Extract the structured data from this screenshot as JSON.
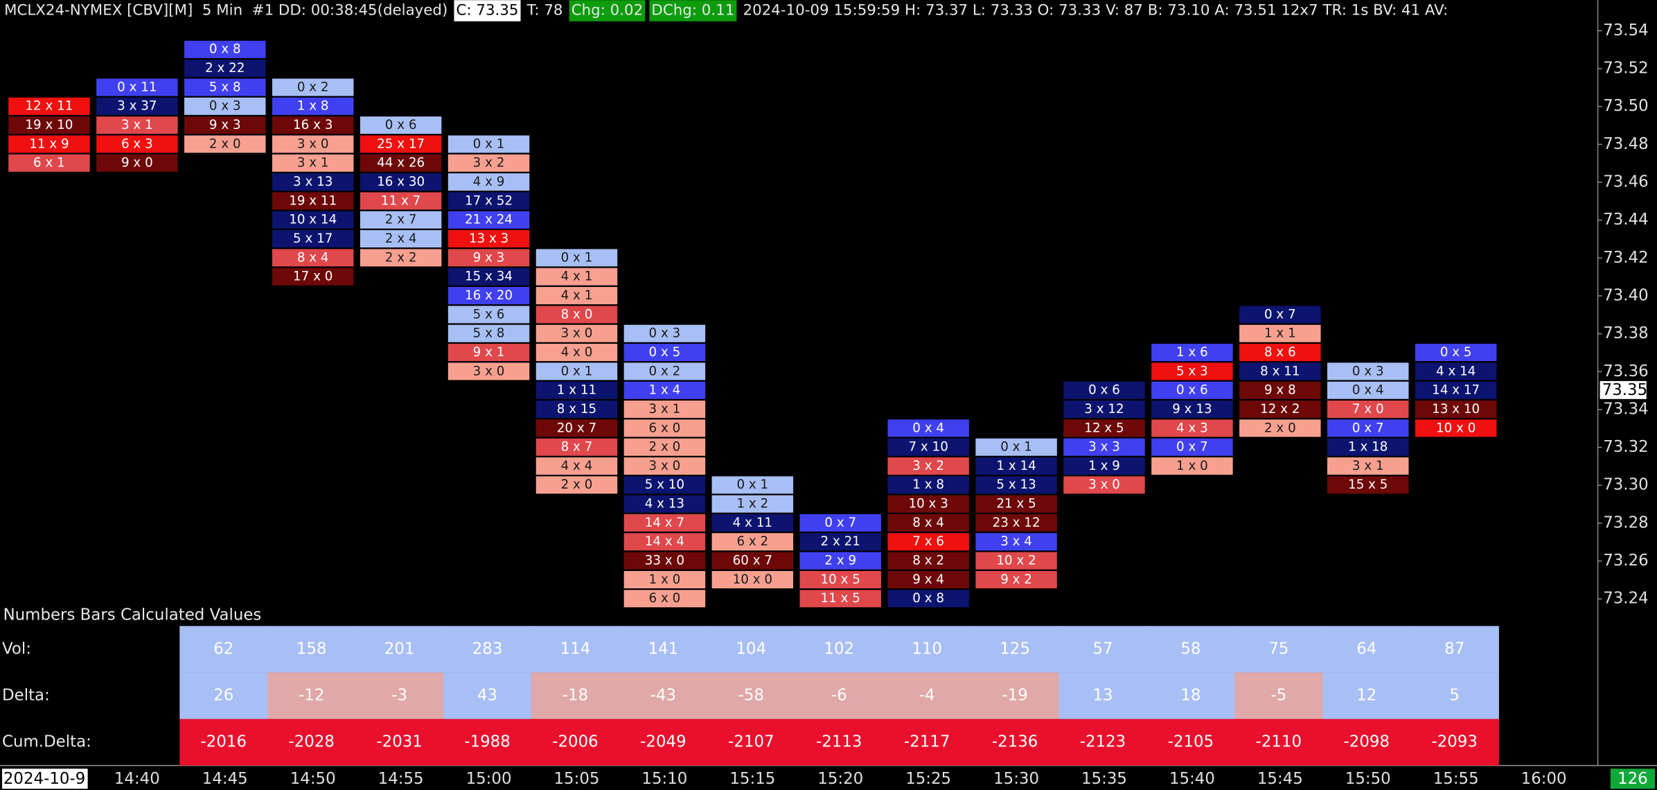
{
  "header": [
    {
      "text": "MCLX24-NYMEX [CBV][M]  5 Min  #1 DD: 00:38:45(delayed)"
    },
    {
      "text": "C: 73.35",
      "bg": "#ffffff",
      "fg": "#000000"
    },
    {
      "text": "T: 78"
    },
    {
      "text": "Chg: 0.02",
      "bg": "#0c9c0c"
    },
    {
      "text": "DChg: 0.11",
      "bg": "#0c9c0c"
    },
    {
      "text": "2024-10-09 15:59:59 H: 73.37 L: 73.33 O: 73.33 V: 87 B: 73.10 A: 73.51 12x7 TR: 1s BV: 41 AV:"
    }
  ],
  "price_axis": {
    "ylim": [
      73.152,
      73.545
    ],
    "ticks": [
      73.24,
      73.26,
      73.28,
      {
        "value": 73.3,
        "label": "73.30"
      },
      73.32,
      73.34,
      73.36,
      73.38,
      {
        "value": 73.4,
        "label": "73.40"
      },
      73.42,
      73.44,
      73.46,
      73.48,
      {
        "value": 73.5,
        "label": "73.50"
      },
      73.52,
      73.54
    ],
    "current_price": 73.35
  },
  "bars": [
    {
      "top": 73.5,
      "cells": [
        [
          "12 x 11",
          "#f01010"
        ],
        [
          "19 x 10",
          "#6e0808"
        ],
        [
          "11 x 9",
          "#f01010"
        ],
        [
          "6 x 1",
          "#e0484c"
        ]
      ]
    },
    {
      "top": 73.51,
      "cells": [
        [
          "0 x 11",
          "#4040f0"
        ],
        [
          "3 x 37",
          "#0c1470"
        ],
        [
          "3 x 1",
          "#e0484c"
        ],
        [
          "6 x 3",
          "#f01010"
        ],
        [
          "9 x 0",
          "#6e0808"
        ]
      ]
    },
    {
      "top": 73.53,
      "cells": [
        [
          "0 x 8",
          "#4040f0"
        ],
        [
          "2 x 22",
          "#0c1470"
        ],
        [
          "5 x 8",
          "#4040f0"
        ],
        [
          "0 x 3",
          "#a8bff5"
        ],
        [
          "9 x 3",
          "#6e0808"
        ],
        [
          "2 x 0",
          "#f8a090"
        ]
      ]
    },
    {
      "top": 73.51,
      "cells": [
        [
          "0 x 2",
          "#a8bff5"
        ],
        [
          "1 x 8",
          "#4040f0"
        ],
        [
          "16 x 3",
          "#6e0808"
        ],
        [
          "3 x 0",
          "#f8a090"
        ],
        [
          "3 x 1",
          "#f8a090"
        ],
        [
          "3 x 13",
          "#0c1470"
        ],
        [
          "19 x 11",
          "#6e0808"
        ],
        [
          "10 x 14",
          "#0c1470"
        ],
        [
          "5 x 17",
          "#0c1470"
        ],
        [
          "8 x 4",
          "#e0484c"
        ],
        [
          "17 x 0",
          "#6e0808"
        ]
      ]
    },
    {
      "top": 73.49,
      "cells": [
        [
          "0 x 6",
          "#a8bff5"
        ],
        [
          "25 x 17",
          "#f01010"
        ],
        [
          "44 x 26",
          "#6e0808"
        ],
        [
          "16 x 30",
          "#0c1470"
        ],
        [
          "11 x 7",
          "#e0484c"
        ],
        [
          "2 x 7",
          "#a8bff5"
        ],
        [
          "2 x 4",
          "#a8bff5"
        ],
        [
          "2 x 2",
          "#f8a090"
        ]
      ]
    },
    {
      "top": 73.48,
      "cells": [
        [
          "0 x 1",
          "#a8bff5"
        ],
        [
          "3 x 2",
          "#f8a090"
        ],
        [
          "4 x 9",
          "#a8bff5"
        ],
        [
          "17 x 52",
          "#0c1470"
        ],
        [
          "21 x 24",
          "#4040f0"
        ],
        [
          "13 x 3",
          "#f01010"
        ],
        [
          "9 x 3",
          "#e0484c"
        ],
        [
          "15 x 34",
          "#0c1470"
        ],
        [
          "16 x 20",
          "#4040f0"
        ],
        [
          "5 x 6",
          "#a8bff5"
        ],
        [
          "5 x 8",
          "#a8bff5"
        ],
        [
          "9 x 1",
          "#e0484c"
        ],
        [
          "3 x 0",
          "#f8a090"
        ]
      ]
    },
    {
      "top": 73.42,
      "cells": [
        [
          "0 x 1",
          "#a8bff5"
        ],
        [
          "4 x 1",
          "#f8a090"
        ],
        [
          "4 x 1",
          "#f8a090"
        ],
        [
          "8 x 0",
          "#e0484c"
        ],
        [
          "3 x 0",
          "#f8a090"
        ],
        [
          "4 x 0",
          "#f8a090"
        ],
        [
          "0 x 1",
          "#a8bff5"
        ],
        [
          "1 x 11",
          "#0c1470"
        ],
        [
          "8 x 15",
          "#0c1470"
        ],
        [
          "20 x 7",
          "#6e0808"
        ],
        [
          "8 x 7",
          "#e0484c"
        ],
        [
          "4 x 4",
          "#f8a090"
        ],
        [
          "2 x 0",
          "#f8a090"
        ]
      ]
    },
    {
      "top": 73.38,
      "cells": [
        [
          "0 x 3",
          "#a8bff5"
        ],
        [
          "0 x 5",
          "#4040f0"
        ],
        [
          "0 x 2",
          "#a8bff5"
        ],
        [
          "1 x 4",
          "#4040f0"
        ],
        [
          "3 x 1",
          "#f8a090"
        ],
        [
          "6 x 0",
          "#f8a090"
        ],
        [
          "2 x 0",
          "#f8a090"
        ],
        [
          "3 x 0",
          "#f8a090"
        ],
        [
          "5 x 10",
          "#0c1470"
        ],
        [
          "4 x 13",
          "#0c1470"
        ],
        [
          "14 x 7",
          "#e0484c"
        ],
        [
          "14 x 4",
          "#e0484c"
        ],
        [
          "33 x 0",
          "#6e0808"
        ],
        [
          "1 x 0",
          "#f8a090"
        ],
        [
          "6 x 0",
          "#f8a090"
        ]
      ]
    },
    {
      "top": 73.3,
      "cells": [
        [
          "0 x 1",
          "#a8bff5"
        ],
        [
          "1 x 2",
          "#a8bff5"
        ],
        [
          "4 x 11",
          "#0c1470"
        ],
        [
          "6 x 2",
          "#f8a090"
        ],
        [
          "60 x 7",
          "#6e0808"
        ],
        [
          "10 x 0",
          "#f8a090"
        ]
      ]
    },
    {
      "top": 73.28,
      "cells": [
        [
          "0 x 7",
          "#4040f0"
        ],
        [
          "2 x 21",
          "#0c1470"
        ],
        [
          "2 x 9",
          "#4040f0"
        ],
        [
          "10 x 5",
          "#e0484c"
        ],
        [
          "11 x 5",
          "#e0484c"
        ]
      ]
    },
    {
      "top": 73.33,
      "cells": [
        [
          "0 x 4",
          "#4040f0"
        ],
        [
          "7 x 10",
          "#0c1470"
        ],
        [
          "3 x 2",
          "#e0484c"
        ],
        [
          "1 x 8",
          "#0c1470"
        ],
        [
          "10 x 3",
          "#6e0808"
        ],
        [
          "8 x 4",
          "#6e0808"
        ],
        [
          "7 x 6",
          "#f01010"
        ],
        [
          "8 x 2",
          "#6e0808"
        ],
        [
          "9 x 4",
          "#6e0808"
        ],
        [
          "0 x 8",
          "#0c1470"
        ]
      ]
    },
    {
      "top": 73.32,
      "cells": [
        [
          "0 x 1",
          "#a8bff5"
        ],
        [
          "1 x 14",
          "#0c1470"
        ],
        [
          "5 x 13",
          "#0c1470"
        ],
        [
          "21 x 5",
          "#6e0808"
        ],
        [
          "23 x 12",
          "#6e0808"
        ],
        [
          "3 x 4",
          "#4040f0"
        ],
        [
          "10 x 2",
          "#e0484c"
        ],
        [
          "9 x 2",
          "#e0484c"
        ]
      ]
    },
    {
      "top": 73.35,
      "cells": [
        [
          "0 x 6",
          "#0c1470"
        ],
        [
          "3 x 12",
          "#0c1470"
        ],
        [
          "12 x 5",
          "#6e0808"
        ],
        [
          "3 x 3",
          "#4040f0"
        ],
        [
          "1 x 9",
          "#0c1470"
        ],
        [
          "3 x 0",
          "#e0484c"
        ]
      ]
    },
    {
      "top": 73.37,
      "cells": [
        [
          "1 x 6",
          "#4040f0"
        ],
        [
          "5 x 3",
          "#f01010"
        ],
        [
          "0 x 6",
          "#4040f0"
        ],
        [
          "9 x 13",
          "#0c1470"
        ],
        [
          "4 x 3",
          "#e0484c"
        ],
        [
          "0 x 7",
          "#4040f0"
        ],
        [
          "1 x 0",
          "#f8a090"
        ]
      ]
    },
    {
      "top": 73.39,
      "cells": [
        [
          "0 x 7",
          "#0c1470"
        ],
        [
          "1 x 1",
          "#f8a090"
        ],
        [
          "8 x 6",
          "#f01010"
        ],
        [
          "8 x 11",
          "#0c1470"
        ],
        [
          "9 x 8",
          "#6e0808"
        ],
        [
          "12 x 2",
          "#6e0808"
        ],
        [
          "2 x 0",
          "#f8a090"
        ]
      ]
    },
    {
      "top": 73.36,
      "cells": [
        [
          "0 x 3",
          "#a8bff5"
        ],
        [
          "0 x 4",
          "#a8bff5"
        ],
        [
          "7 x 0",
          "#e0484c"
        ],
        [
          "0 x 7",
          "#4040f0"
        ],
        [
          "1 x 18",
          "#0c1470"
        ],
        [
          "3 x 1",
          "#f8a090"
        ],
        [
          "15 x 5",
          "#6e0808"
        ]
      ]
    },
    {
      "top": 73.37,
      "cells": [
        [
          "0 x 5",
          "#4040f0"
        ],
        [
          "4 x 14",
          "#0c1470"
        ],
        [
          "14 x 17",
          "#0c1470"
        ],
        [
          "13 x 10",
          "#6e0808"
        ],
        [
          "10 x 0",
          "#f01010"
        ]
      ]
    }
  ],
  "summary": {
    "title": "Numbers Bars Calculated Values",
    "rows": [
      {
        "label": "Vol:",
        "color": "#a8bff5",
        "values": [
          62,
          158,
          201,
          283,
          114,
          141,
          104,
          102,
          110,
          125,
          57,
          58,
          75,
          64,
          87
        ]
      },
      {
        "label": "Delta:",
        "colors": [
          "#a8bff5",
          "#e0a8a8",
          "#e0a8a8",
          "#a8bff5",
          "#e0a8a8",
          "#e0a8a8",
          "#e0a8a8",
          "#e0a8a8",
          "#e0a8a8",
          "#e0a8a8",
          "#a8bff5",
          "#a8bff5",
          "#e0a8a8",
          "#a8bff5",
          "#a8bff5"
        ],
        "values": [
          26,
          -12,
          -3,
          43,
          -18,
          -43,
          -58,
          -6,
          -4,
          -19,
          13,
          18,
          -5,
          12,
          5
        ]
      },
      {
        "label": "Cum.Delta:",
        "color": "#e8102c",
        "values": [
          -2016,
          -2028,
          -2031,
          -1988,
          -2006,
          -2049,
          -2107,
          -2113,
          -2117,
          -2136,
          -2123,
          -2105,
          -2110,
          -2098,
          -2093
        ]
      }
    ]
  },
  "time_axis": [
    "2024-10-9",
    "14:40",
    "14:45",
    "14:50",
    "14:55",
    "15:00",
    "15:05",
    "15:10",
    "15:15",
    "15:20",
    "15:25",
    "15:30",
    "15:35",
    "15:40",
    "15:45",
    "15:50",
    "15:55",
    "16:00"
  ],
  "status_count": 126
}
